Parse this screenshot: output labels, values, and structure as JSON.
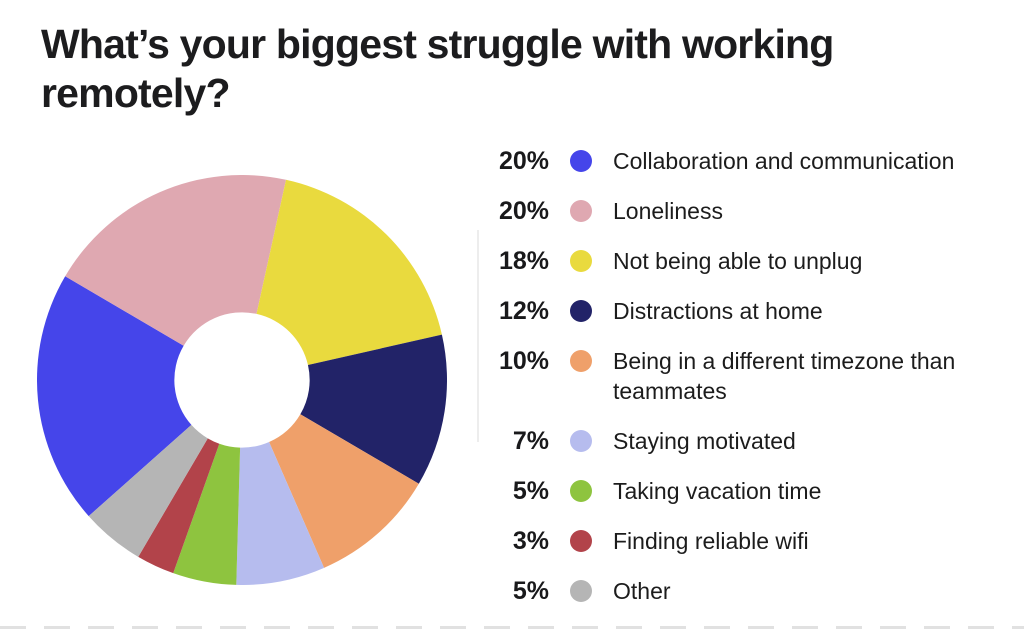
{
  "page": {
    "background": "#ffffff",
    "title": "What’s your biggest struggle with working remotely?"
  },
  "chart_data": {
    "type": "pie",
    "subtype": "donut",
    "title": "What’s your biggest struggle with working remotely?",
    "donut_hole_ratio": 0.33,
    "start_angle_deg": 228.4,
    "direction": "clockwise",
    "legend_position": "right",
    "segments": [
      {
        "label": "Collaboration and communication",
        "value": 20,
        "percent_label": "20%",
        "color": "#4545ea"
      },
      {
        "label": "Loneliness",
        "value": 20,
        "percent_label": "20%",
        "color": "#dfa8b1"
      },
      {
        "label": "Not being able to unplug",
        "value": 18,
        "percent_label": "18%",
        "color": "#e9da3e"
      },
      {
        "label": "Distractions at home",
        "value": 12,
        "percent_label": "12%",
        "color": "#222368"
      },
      {
        "label": "Being in a different timezone than teammates",
        "value": 10,
        "percent_label": "10%",
        "color": "#efa06a"
      },
      {
        "label": "Staying motivated",
        "value": 7,
        "percent_label": "7%",
        "color": "#b6bcee"
      },
      {
        "label": "Taking vacation time",
        "value": 5,
        "percent_label": "5%",
        "color": "#8ec43f"
      },
      {
        "label": "Finding reliable wifi",
        "value": 3,
        "percent_label": "3%",
        "color": "#b2434a"
      },
      {
        "label": "Other",
        "value": 5,
        "percent_label": "5%",
        "color": "#b5b5b5"
      }
    ]
  }
}
